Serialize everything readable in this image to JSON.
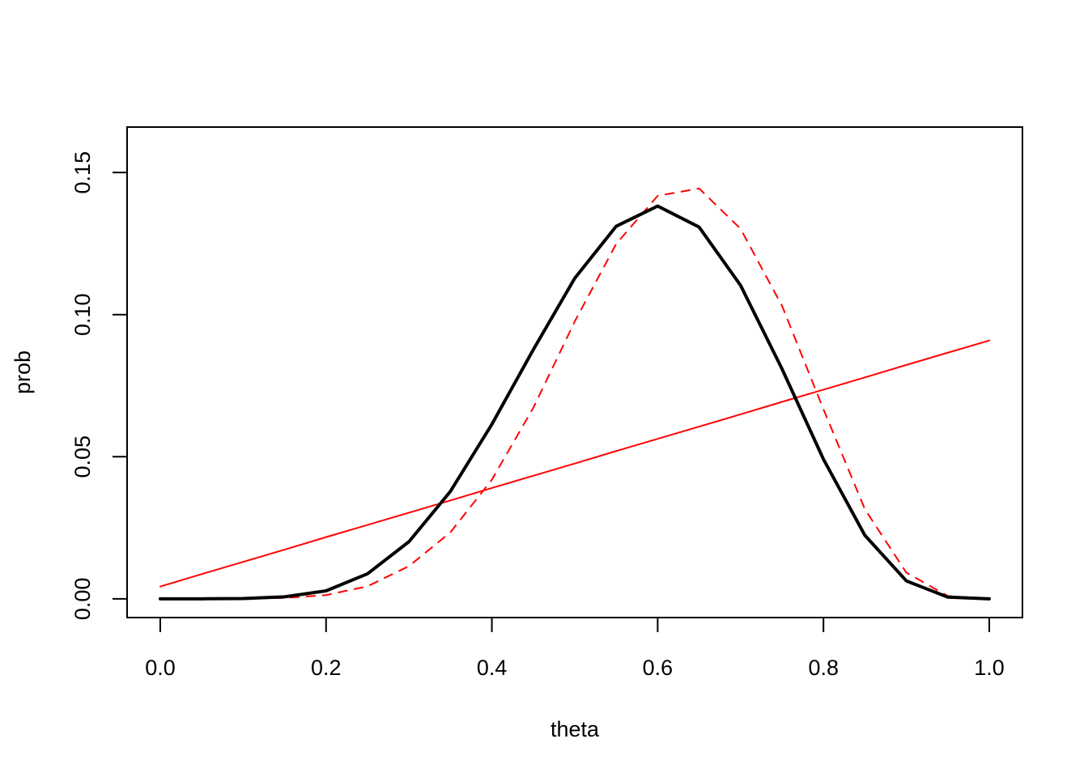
{
  "chart_data": {
    "type": "line",
    "title": "",
    "xlabel": "theta",
    "ylabel": "prob",
    "xlim": [
      -0.04,
      1.04
    ],
    "ylim": [
      -0.0066,
      0.166
    ],
    "grid": false,
    "x_ticks": [
      "0.0",
      "0.2",
      "0.4",
      "0.6",
      "0.8",
      "1.0"
    ],
    "y_ticks": [
      "0.00",
      "0.05",
      "0.10",
      "0.15"
    ],
    "x": [
      0.0,
      0.05,
      0.1,
      0.15,
      0.2,
      0.25,
      0.3,
      0.35,
      0.4,
      0.45,
      0.5,
      0.55,
      0.6,
      0.65,
      0.7,
      0.75,
      0.8,
      0.85,
      0.9,
      0.95,
      1.0
    ],
    "series": [
      {
        "color": "#000000",
        "style": "solid",
        "width": "thick",
        "values": [
          0.0,
          0.0,
          0.0001,
          0.0007,
          0.0028,
          0.0088,
          0.0201,
          0.0378,
          0.0614,
          0.0877,
          0.1128,
          0.1311,
          0.1382,
          0.1308,
          0.1103,
          0.0809,
          0.0491,
          0.0223,
          0.0063,
          0.0006,
          0.0
        ]
      },
      {
        "color": "#ff0000",
        "style": "dashed",
        "width": "thin",
        "values": [
          0.0,
          0.0,
          0.0,
          0.0003,
          0.0013,
          0.0044,
          0.0115,
          0.0234,
          0.0419,
          0.0672,
          0.0976,
          0.1249,
          0.1418,
          0.1444,
          0.1302,
          0.1031,
          0.0667,
          0.0315,
          0.0092,
          0.001,
          0.0
        ]
      },
      {
        "color": "#ff0000",
        "style": "solid",
        "width": "thin",
        "values": [
          0.0043,
          0.0087,
          0.013,
          0.0173,
          0.0217,
          0.026,
          0.0303,
          0.0346,
          0.039,
          0.0433,
          0.0476,
          0.052,
          0.0563,
          0.0606,
          0.0649,
          0.0693,
          0.0736,
          0.0779,
          0.0823,
          0.0866,
          0.0909
        ]
      }
    ]
  }
}
